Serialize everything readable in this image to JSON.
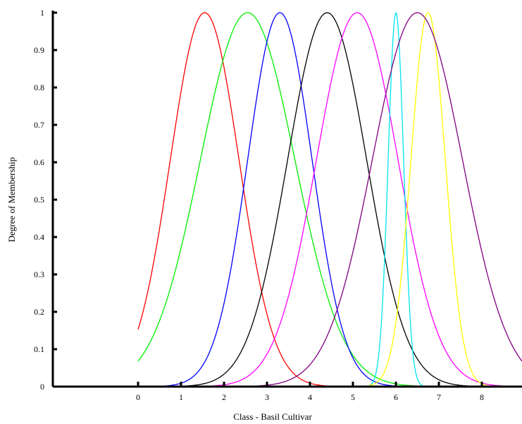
{
  "chart_data": {
    "type": "line",
    "title": "",
    "xlabel": "Class - Basil Cultivar",
    "ylabel": "Degree of Membership",
    "xlim": [
      -2.0,
      9.0
    ],
    "ylim": [
      0,
      1
    ],
    "x_ticks": [
      "0",
      "1",
      "2",
      "3",
      "4",
      "5",
      "6",
      "7",
      "8"
    ],
    "y_ticks": [
      "0",
      "0.1",
      "0.2",
      "0.3",
      "0.4",
      "0.5",
      "0.6",
      "0.7",
      "0.8",
      "0.9",
      "1"
    ],
    "grid": false,
    "legend": "none",
    "curve_shape": "gaussian",
    "series": [
      {
        "color": "#ff0000",
        "center": 1.55,
        "sigma": 0.8,
        "x_start": 0
      },
      {
        "color": "#00ee00",
        "center": 2.55,
        "sigma": 1.1,
        "x_start": 0
      },
      {
        "color": "#0000ff",
        "center": 3.3,
        "sigma": 0.75,
        "x_start": 0
      },
      {
        "color": "#000000",
        "center": 4.4,
        "sigma": 0.92,
        "x_start": 0
      },
      {
        "color": "#ff00ff",
        "center": 5.1,
        "sigma": 0.95,
        "x_start": 0
      },
      {
        "color": "#00e5ee",
        "center": 6.0,
        "sigma": 0.18,
        "x_start": 0
      },
      {
        "color": "#ffff00",
        "center": 6.75,
        "sigma": 0.4,
        "x_start": 0
      },
      {
        "color": "#800080",
        "center": 6.5,
        "sigma": 1.05,
        "x_start": 0
      }
    ]
  }
}
